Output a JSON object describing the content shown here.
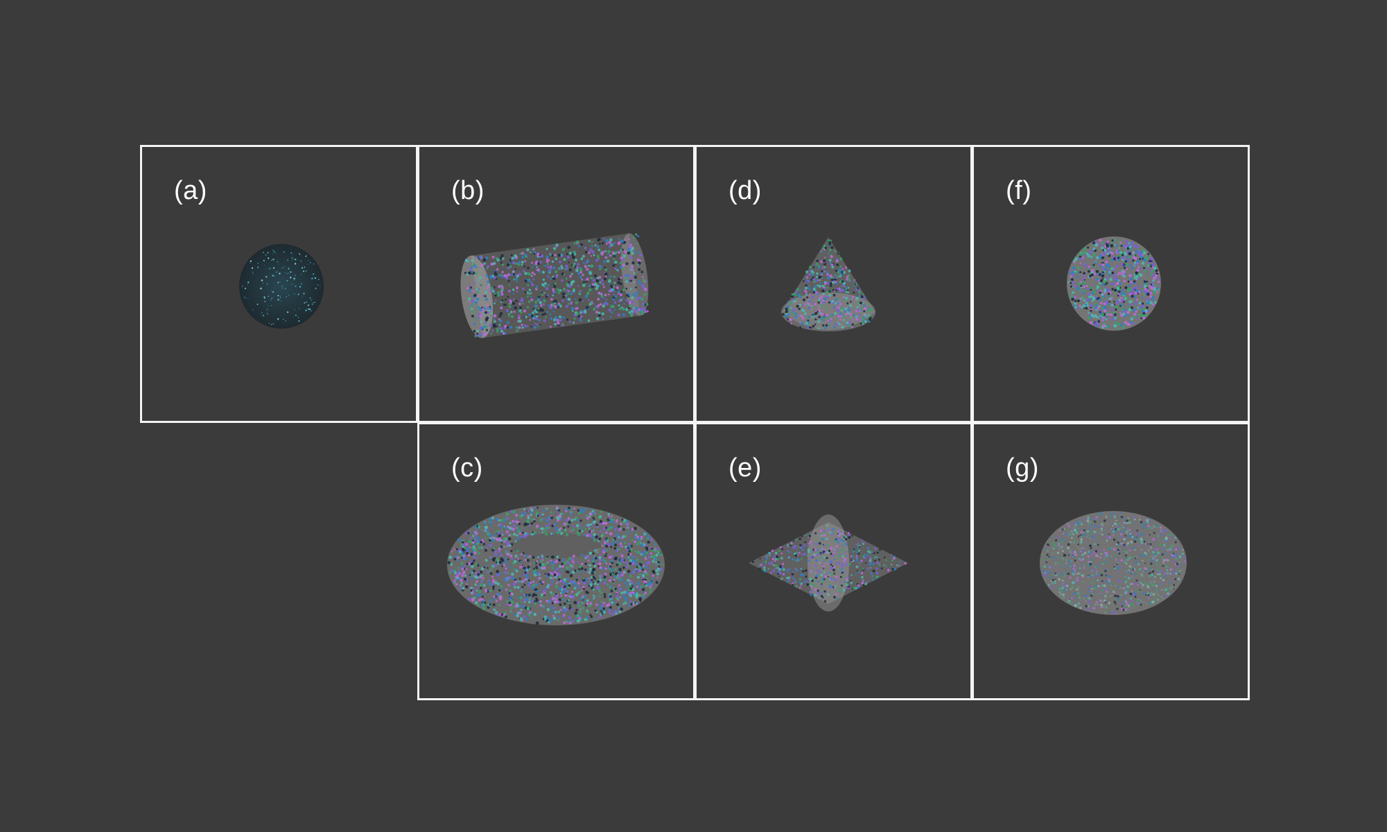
{
  "panels": [
    {
      "id": "a",
      "label": "(a)",
      "shape": "sphere-seed"
    },
    {
      "id": "b",
      "label": "(b)",
      "shape": "cylinder"
    },
    {
      "id": "c",
      "label": "(c)",
      "shape": "torus"
    },
    {
      "id": "d",
      "label": "(d)",
      "shape": "cone"
    },
    {
      "id": "e",
      "label": "(e)",
      "shape": "double-cone"
    },
    {
      "id": "f",
      "label": "(f)",
      "shape": "sphere"
    },
    {
      "id": "g",
      "label": "(g)",
      "shape": "ellipsoid"
    }
  ],
  "colors": {
    "background": "#3b3b3b",
    "frame": "#f4f4f4",
    "label": "#ffffff",
    "shell": "#9a9a9a",
    "particles": [
      "#3a9f6a",
      "#4fb8b0",
      "#7b5fd6",
      "#c06ad8",
      "#2f7fc4",
      "#1b2a3a"
    ],
    "seed": "#5fd6e6"
  }
}
